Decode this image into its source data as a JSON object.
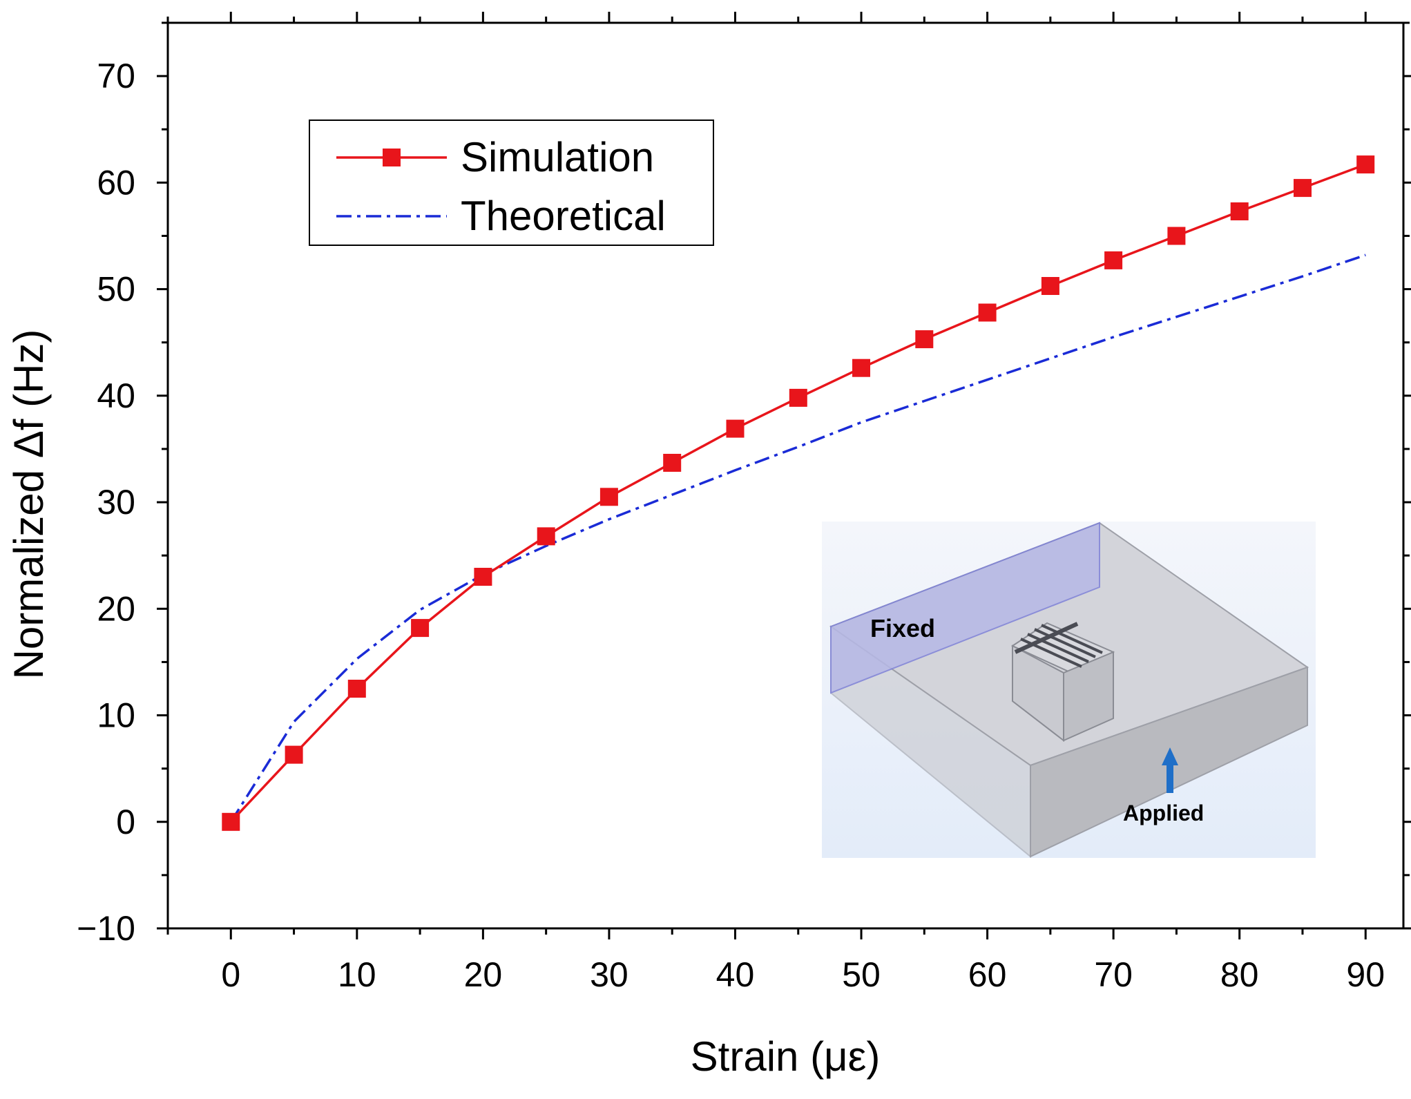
{
  "chart_data": {
    "type": "line",
    "title": "",
    "xlabel": "Strain (με)",
    "ylabel": "Normalized Δf (Hz)",
    "xlim": [
      -5,
      93
    ],
    "ylim": [
      -10,
      75
    ],
    "x_ticks": [
      0,
      10,
      20,
      30,
      40,
      50,
      60,
      70,
      80,
      90
    ],
    "y_ticks": [
      -10,
      0,
      10,
      20,
      30,
      40,
      50,
      60,
      70
    ],
    "x_tick_labels": [
      "0",
      "10",
      "20",
      "30",
      "40",
      "50",
      "60",
      "70",
      "80",
      "90"
    ],
    "y_tick_labels": [
      "−10",
      "0",
      "10",
      "20",
      "30",
      "40",
      "50",
      "60",
      "70"
    ],
    "grid": false,
    "legend": {
      "position": "top-left",
      "entries": [
        "Simulation",
        "Theoretical"
      ]
    },
    "series": [
      {
        "name": "Simulation",
        "color": "#e8151b",
        "style": "solid-line-square-markers",
        "x": [
          0,
          5,
          10,
          15,
          20,
          25,
          30,
          35,
          40,
          45,
          50,
          55,
          60,
          65,
          70,
          75,
          80,
          85,
          90
        ],
        "values": [
          0,
          6.3,
          12.5,
          18.2,
          23.0,
          26.8,
          30.5,
          33.7,
          36.9,
          39.8,
          42.6,
          45.3,
          47.8,
          50.3,
          52.7,
          55.0,
          57.3,
          59.5,
          61.7
        ]
      },
      {
        "name": "Theoretical",
        "color": "#1a2bd6",
        "style": "dash-dot-line",
        "x": [
          0,
          5,
          10,
          15,
          20,
          25,
          30,
          35,
          40,
          45,
          50,
          55,
          60,
          65,
          70,
          75,
          80,
          85,
          90
        ],
        "values": [
          0,
          9.4,
          15.3,
          19.9,
          23.2,
          25.9,
          28.4,
          30.7,
          33.0,
          35.2,
          37.5,
          39.5,
          41.5,
          43.5,
          45.5,
          47.4,
          49.3,
          51.2,
          53.2
        ]
      }
    ],
    "inset": {
      "label_fixed": "Fixed",
      "label_applied": "Applied"
    }
  },
  "colors": {
    "simulation": "#e8151b",
    "theoretical": "#1a2bd6",
    "applied_arrow": "#1f6fc8",
    "fixed_face": "#b6b8e6"
  }
}
